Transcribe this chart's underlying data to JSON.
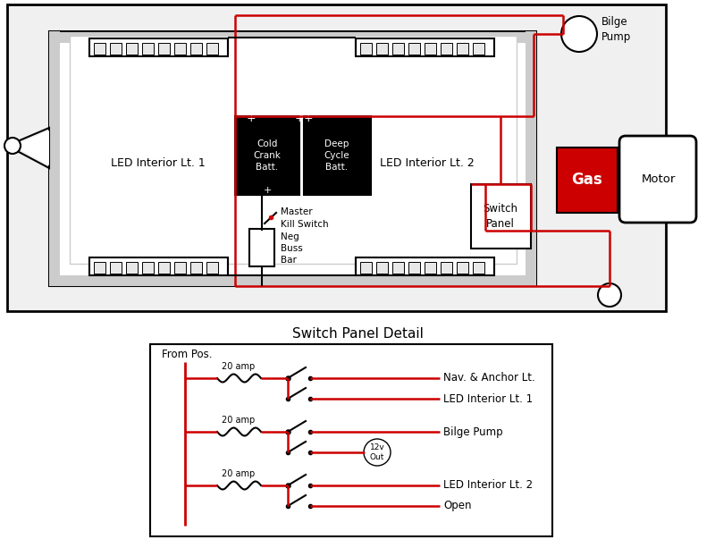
{
  "bg": "#ffffff",
  "red": "#cc0000",
  "black": "#000000",
  "gray": "#aaaaaa",
  "light_gray": "#cccccc",
  "led1_label": "LED Interior Lt. 1",
  "led2_label": "LED Interior Lt. 2",
  "batt1_label": "Cold\nCrank\nBatt.",
  "batt2_label": "Deep\nCycle\nBatt.",
  "kill_label": "Master\nKill Switch",
  "neg_label": "Neg\nBuss\nBar",
  "gas_label": "Gas",
  "motor_label": "Motor",
  "bilge_label": "Bilge\nPump",
  "switch_panel_label": "Switch\nPanel",
  "sp_detail_title": "Switch Panel Detail",
  "sp_from_pos": "From Pos.",
  "sp_circuits": [
    {
      "amp": "20 amp",
      "label1": "Nav. & Anchor Lt.",
      "label2": "LED Interior Lt. 1",
      "special": null
    },
    {
      "amp": "20 amp",
      "label1": "Bilge Pump",
      "label2": "12v\nOut",
      "special": "12v\nOut"
    },
    {
      "amp": "20 amp",
      "label1": "LED Interior Lt. 2",
      "label2": "Open",
      "special": null
    }
  ]
}
